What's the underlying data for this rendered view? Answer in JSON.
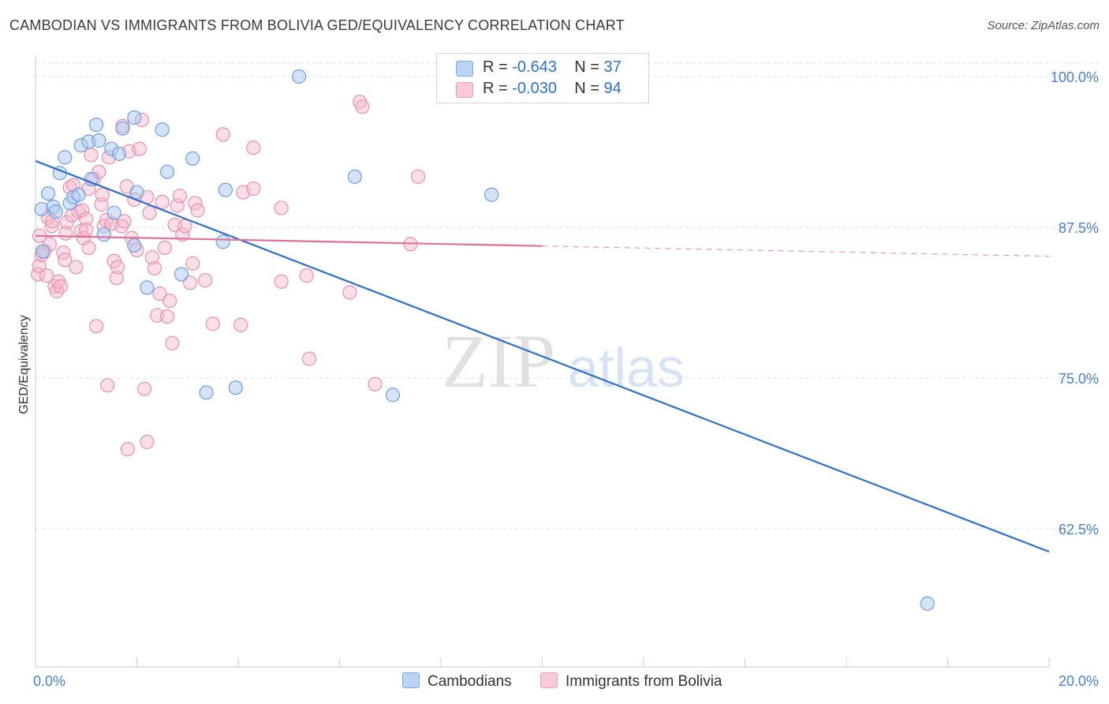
{
  "title": "CAMBODIAN VS IMMIGRANTS FROM BOLIVIA GED/EQUIVALENCY CORRELATION CHART",
  "source": "Source: ZipAtlas.com",
  "watermark": {
    "zip": "ZIP",
    "atlas": "atlas"
  },
  "legend": {
    "rows": [
      {
        "r_label": "R = ",
        "r_value": "-0.643",
        "n_label": "N = ",
        "n_value": "37"
      },
      {
        "r_label": "R = ",
        "r_value": "-0.030",
        "n_label": "N = ",
        "n_value": "94"
      }
    ]
  },
  "bottom_legend": {
    "series1": "Cambodians",
    "series2": "Immigrants from Bolivia"
  },
  "colors": {
    "blue_fill": "#a9c8f0",
    "blue_stroke": "#6f9fdc",
    "blue_line": "#2f6fd0",
    "pink_fill": "#f5b8cc",
    "pink_stroke": "#e891ad",
    "pink_line": "#e0709a",
    "axis_text": "#4a7fd0",
    "grid": "#dddddd"
  },
  "chart_data": {
    "type": "scatter",
    "title": "CAMBODIAN VS IMMIGRANTS FROM BOLIVIA GED/EQUIVALENCY CORRELATION CHART",
    "xlabel": "",
    "ylabel": "GED/Equivalency",
    "xlim": [
      0,
      20
    ],
    "ylim": [
      51,
      102
    ],
    "x_tick_labels": [
      "0.0%",
      "20.0%"
    ],
    "y_ticks": [
      62.5,
      75.0,
      87.5,
      100.0
    ],
    "y_tick_labels": [
      "62.5%",
      "75.0%",
      "87.5%",
      "100.0%"
    ],
    "grid": true,
    "legend_position": "top-center",
    "series": [
      {
        "name": "Cambodians",
        "r": -0.643,
        "n": 37,
        "trend": {
          "x": [
            0,
            20
          ],
          "y": [
            93.0,
            60.6
          ],
          "dashed_from": null
        },
        "points": [
          [
            0.12,
            89.0
          ],
          [
            0.14,
            85.5
          ],
          [
            0.25,
            90.3
          ],
          [
            0.35,
            89.2
          ],
          [
            0.4,
            88.8
          ],
          [
            0.48,
            92.0
          ],
          [
            0.58,
            93.3
          ],
          [
            0.68,
            89.5
          ],
          [
            0.75,
            90.0
          ],
          [
            0.85,
            90.2
          ],
          [
            0.9,
            94.3
          ],
          [
            1.05,
            94.6
          ],
          [
            1.1,
            91.5
          ],
          [
            1.2,
            96.0
          ],
          [
            1.25,
            94.7
          ],
          [
            1.35,
            86.9
          ],
          [
            1.5,
            94.0
          ],
          [
            1.55,
            88.7
          ],
          [
            1.65,
            93.6
          ],
          [
            1.72,
            95.7
          ],
          [
            1.95,
            96.6
          ],
          [
            1.95,
            86.0
          ],
          [
            2.0,
            90.4
          ],
          [
            2.2,
            82.5
          ],
          [
            2.5,
            95.6
          ],
          [
            2.6,
            92.1
          ],
          [
            2.88,
            83.6
          ],
          [
            3.1,
            93.2
          ],
          [
            3.37,
            73.8
          ],
          [
            3.7,
            86.3
          ],
          [
            3.75,
            90.6
          ],
          [
            3.95,
            74.2
          ],
          [
            5.2,
            100.0
          ],
          [
            6.3,
            91.7
          ],
          [
            7.05,
            73.6
          ],
          [
            9.0,
            90.2
          ],
          [
            17.6,
            56.3
          ]
        ]
      },
      {
        "name": "Immigrants from Bolivia",
        "r": -0.03,
        "n": 94,
        "trend": {
          "x": [
            0,
            20
          ],
          "y": [
            86.8,
            85.1
          ],
          "dashed_from": 10.0
        },
        "points": [
          [
            0.05,
            83.6
          ],
          [
            0.07,
            84.3
          ],
          [
            0.08,
            86.8
          ],
          [
            0.12,
            85.2
          ],
          [
            0.18,
            85.5
          ],
          [
            0.25,
            88.3
          ],
          [
            0.28,
            86.1
          ],
          [
            0.32,
            87.6
          ],
          [
            0.38,
            82.6
          ],
          [
            0.42,
            82.2
          ],
          [
            0.45,
            83.0
          ],
          [
            0.5,
            82.6
          ],
          [
            0.55,
            85.4
          ],
          [
            0.58,
            84.8
          ],
          [
            0.62,
            87.9
          ],
          [
            0.68,
            90.8
          ],
          [
            0.72,
            88.5
          ],
          [
            0.75,
            91.0
          ],
          [
            0.8,
            84.2
          ],
          [
            0.85,
            88.8
          ],
          [
            0.9,
            87.2
          ],
          [
            0.92,
            88.9
          ],
          [
            0.95,
            86.6
          ],
          [
            1.0,
            88.2
          ],
          [
            1.05,
            85.8
          ],
          [
            1.05,
            90.7
          ],
          [
            1.1,
            93.5
          ],
          [
            1.15,
            91.5
          ],
          [
            1.2,
            79.3
          ],
          [
            1.25,
            92.1
          ],
          [
            1.3,
            89.4
          ],
          [
            1.32,
            90.2
          ],
          [
            1.35,
            87.6
          ],
          [
            1.4,
            88.1
          ],
          [
            1.42,
            74.4
          ],
          [
            1.45,
            93.3
          ],
          [
            1.5,
            87.8
          ],
          [
            1.55,
            84.7
          ],
          [
            1.6,
            83.3
          ],
          [
            1.62,
            84.2
          ],
          [
            1.7,
            87.6
          ],
          [
            1.75,
            88.0
          ],
          [
            1.72,
            95.9
          ],
          [
            1.8,
            90.9
          ],
          [
            1.82,
            69.1
          ],
          [
            1.85,
            93.8
          ],
          [
            1.9,
            86.6
          ],
          [
            1.95,
            89.8
          ],
          [
            2.0,
            85.6
          ],
          [
            2.05,
            94.0
          ],
          [
            2.1,
            96.4
          ],
          [
            2.15,
            74.1
          ],
          [
            2.2,
            90.0
          ],
          [
            2.2,
            69.7
          ],
          [
            2.25,
            88.7
          ],
          [
            2.35,
            84.1
          ],
          [
            2.4,
            80.2
          ],
          [
            2.45,
            82.0
          ],
          [
            2.5,
            89.6
          ],
          [
            2.55,
            85.8
          ],
          [
            2.6,
            80.1
          ],
          [
            2.65,
            81.4
          ],
          [
            2.7,
            77.9
          ],
          [
            2.75,
            87.7
          ],
          [
            2.8,
            89.3
          ],
          [
            2.85,
            90.1
          ],
          [
            2.9,
            86.9
          ],
          [
            2.95,
            87.6
          ],
          [
            3.05,
            82.9
          ],
          [
            3.1,
            84.5
          ],
          [
            3.15,
            89.5
          ],
          [
            3.2,
            88.9
          ],
          [
            3.35,
            83.1
          ],
          [
            3.5,
            79.5
          ],
          [
            3.7,
            95.2
          ],
          [
            4.1,
            90.4
          ],
          [
            4.05,
            79.4
          ],
          [
            4.3,
            90.7
          ],
          [
            4.3,
            94.1
          ],
          [
            4.85,
            89.1
          ],
          [
            4.85,
            83.0
          ],
          [
            5.35,
            83.5
          ],
          [
            5.4,
            76.6
          ],
          [
            6.2,
            82.1
          ],
          [
            6.4,
            97.9
          ],
          [
            6.45,
            97.5
          ],
          [
            6.7,
            74.5
          ],
          [
            7.4,
            86.1
          ],
          [
            7.55,
            91.7
          ],
          [
            0.22,
            83.5
          ],
          [
            0.33,
            88.0
          ],
          [
            0.6,
            87.0
          ],
          [
            1.0,
            87.3
          ],
          [
            2.3,
            85.0
          ]
        ]
      }
    ]
  }
}
